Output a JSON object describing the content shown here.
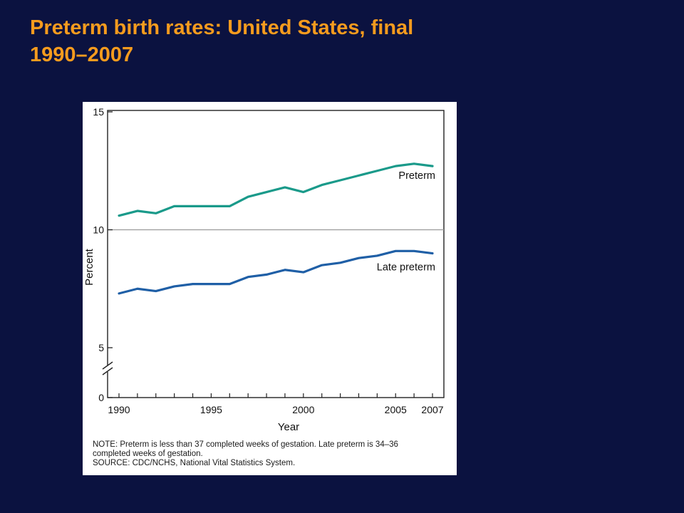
{
  "slide": {
    "title_line1": "Preterm birth rates: United States, final",
    "title_line2": "1990–2007"
  },
  "note": {
    "line1": "NOTE: Preterm is less than 37 completed weeks of gestation.  Late preterm is 34–36",
    "line2": "completed weeks of gestation.",
    "line3": "SOURCE: CDC/NCHS, National Vital Statistics System."
  },
  "chart_data": {
    "type": "line",
    "xlabel": "Year",
    "ylabel": "Percent",
    "x": [
      1990,
      1991,
      1992,
      1993,
      1994,
      1995,
      1996,
      1997,
      1998,
      1999,
      2000,
      2001,
      2002,
      2003,
      2004,
      2005,
      2006,
      2007
    ],
    "xticks": [
      1990,
      1995,
      2000,
      2005,
      2007
    ],
    "yticks": [
      0,
      5,
      10,
      15
    ],
    "ylim": [
      0,
      15
    ],
    "axis_break": true,
    "reference_line": 10,
    "grid": false,
    "series": [
      {
        "name": "Preterm",
        "color": "#1a9a8a",
        "values": [
          10.6,
          10.8,
          10.7,
          11.0,
          11.0,
          11.0,
          11.0,
          11.4,
          11.6,
          11.8,
          11.6,
          11.9,
          12.1,
          12.3,
          12.5,
          12.7,
          12.8,
          12.7
        ]
      },
      {
        "name": "Late preterm",
        "color": "#1f5fa6",
        "values": [
          7.3,
          7.5,
          7.4,
          7.6,
          7.7,
          7.7,
          7.7,
          8.0,
          8.1,
          8.3,
          8.2,
          8.5,
          8.6,
          8.8,
          8.9,
          9.1,
          9.1,
          9.0
        ]
      }
    ]
  }
}
